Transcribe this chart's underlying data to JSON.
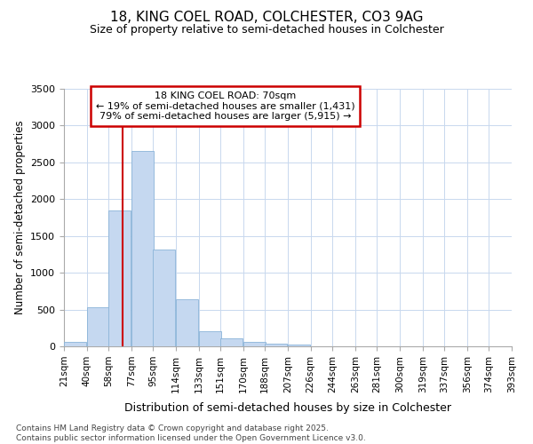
{
  "title1": "18, KING COEL ROAD, COLCHESTER, CO3 9AG",
  "title2": "Size of property relative to semi-detached houses in Colchester",
  "xlabel": "Distribution of semi-detached houses by size in Colchester",
  "ylabel": "Number of semi-detached properties",
  "footer1": "Contains HM Land Registry data © Crown copyright and database right 2025.",
  "footer2": "Contains public sector information licensed under the Open Government Licence v3.0.",
  "property_size": 70,
  "property_label": "18 KING COEL ROAD: 70sqm",
  "annotation_left": "← 19% of semi-detached houses are smaller (1,431)",
  "annotation_right": "79% of semi-detached houses are larger (5,915) →",
  "bar_color": "#c5d8f0",
  "bar_edge_color": "#8ab4d8",
  "vline_color": "#cc0000",
  "annotation_box_color": "#ffffff",
  "annotation_box_edge": "#cc0000",
  "background_color": "#ffffff",
  "grid_color": "#c8d8ee",
  "bins": [
    21,
    40,
    58,
    77,
    95,
    114,
    133,
    151,
    170,
    188,
    207,
    226,
    244,
    263,
    281,
    300,
    319,
    337,
    356,
    374,
    393
  ],
  "counts": [
    65,
    530,
    1850,
    2650,
    1310,
    640,
    210,
    110,
    55,
    40,
    20,
    5,
    0,
    0,
    0,
    0,
    0,
    0,
    0,
    0
  ],
  "ylim": [
    0,
    3500
  ],
  "yticks": [
    0,
    500,
    1000,
    1500,
    2000,
    2500,
    3000,
    3500
  ]
}
